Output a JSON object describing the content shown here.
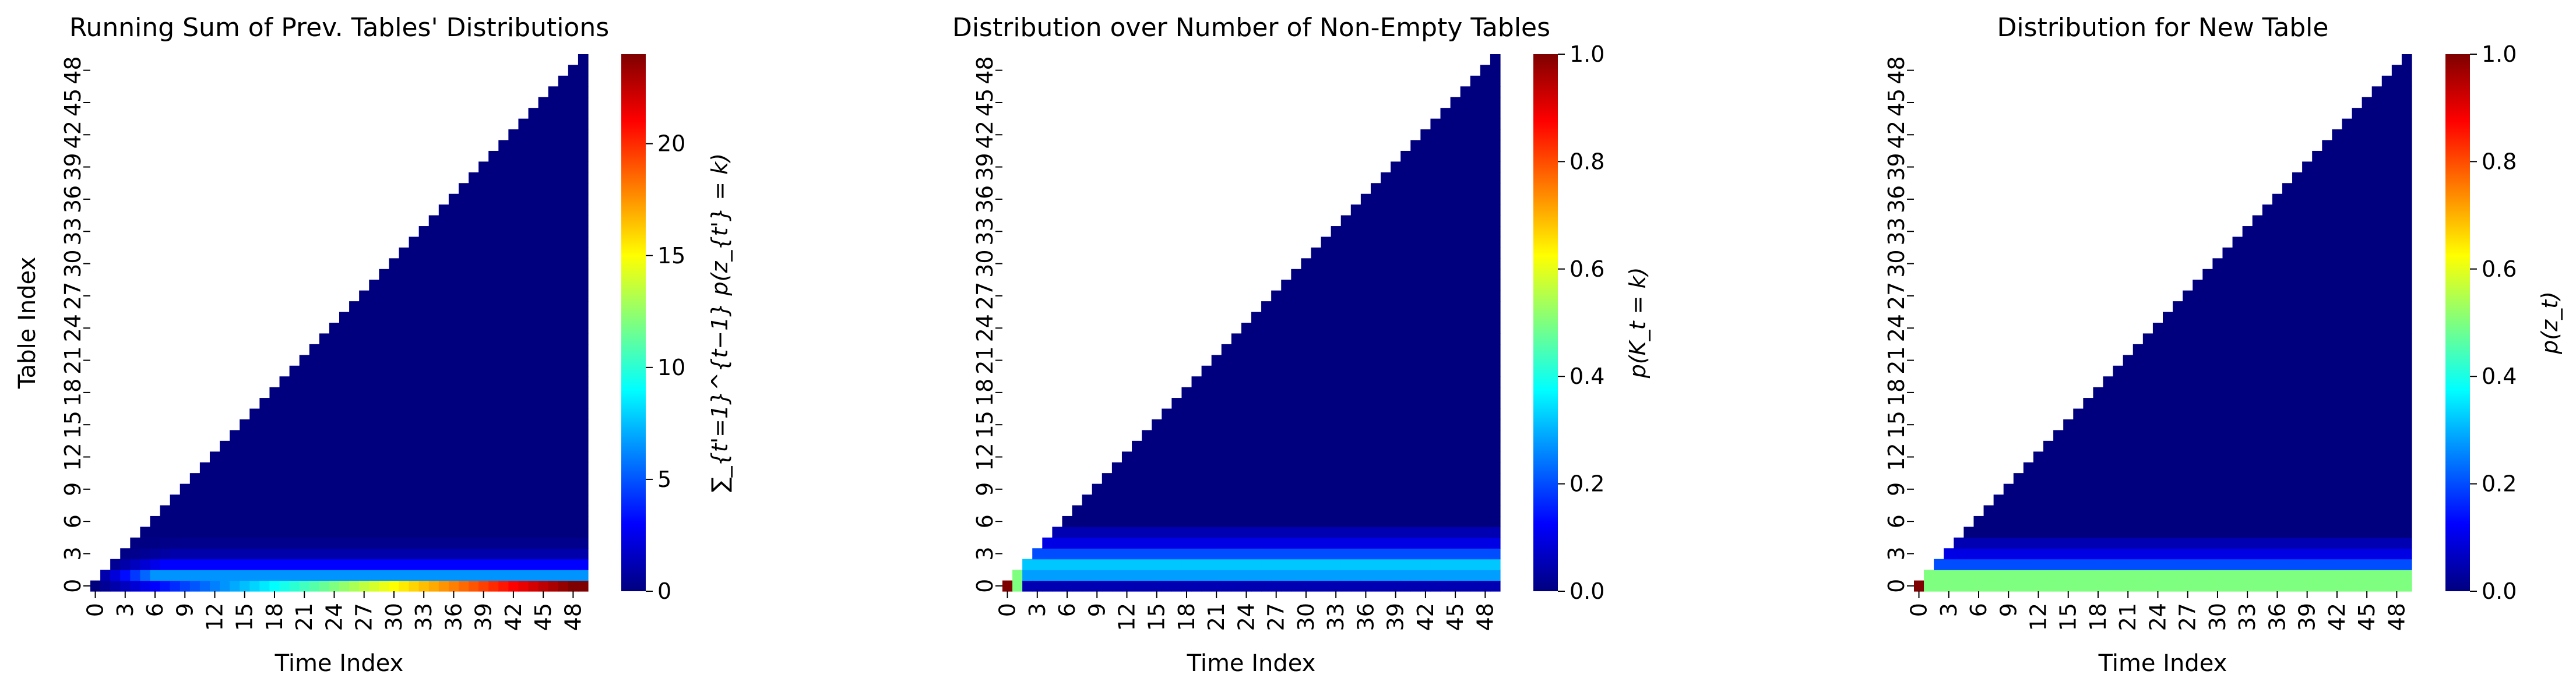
{
  "colormap": {
    "name": "jet",
    "stops": [
      "#00007f",
      "#0000ff",
      "#007fff",
      "#00ffff",
      "#7fff7f",
      "#ffff00",
      "#ff7f00",
      "#ff0000",
      "#7f0000"
    ],
    "empty_cell_color": "#ffffff"
  },
  "chart_data": [
    {
      "type": "heatmap",
      "title": "Running Sum of Prev. Tables' Distributions",
      "xlabel": "Time Index",
      "ylabel": "Table Index",
      "x_tick_labels": [
        "0",
        "3",
        "6",
        "9",
        "12",
        "15",
        "18",
        "21",
        "24",
        "27",
        "30",
        "33",
        "36",
        "39",
        "42",
        "45",
        "48"
      ],
      "y_tick_labels": [
        "0",
        "3",
        "6",
        "9",
        "12",
        "15",
        "18",
        "21",
        "24",
        "27",
        "30",
        "33",
        "36",
        "39",
        "42",
        "45",
        "48"
      ],
      "n_time": 50,
      "n_tables": 50,
      "mask": "cells with table index > time index are empty",
      "colorbar": {
        "label": "∑_{t'=1}^{t−1} p(z_{t'} = k)",
        "min": 0,
        "max": 24,
        "tick_labels": [
          "0",
          "5",
          "10",
          "15",
          "20"
        ],
        "tick_values": [
          0,
          5,
          10,
          15,
          20
        ]
      },
      "approx_values": {
        "table_0_row": "0.5 × time index",
        "table_1_row": "≈6.5 after t≈6",
        "table_2_row": "≈3 after t≈6",
        "table_3_row": "≈1 after t≈6",
        "other_rows": "≈0"
      }
    },
    {
      "type": "heatmap",
      "title": "Distribution over Number of Non-Empty Tables",
      "xlabel": "Time Index",
      "ylabel": "",
      "x_tick_labels": [
        "0",
        "3",
        "6",
        "9",
        "12",
        "15",
        "18",
        "21",
        "24",
        "27",
        "30",
        "33",
        "36",
        "39",
        "42",
        "45",
        "48"
      ],
      "y_tick_labels": [
        "0",
        "3",
        "6",
        "9",
        "12",
        "15",
        "18",
        "21",
        "24",
        "27",
        "30",
        "33",
        "36",
        "39",
        "42",
        "45",
        "48"
      ],
      "n_time": 50,
      "n_tables": 50,
      "mask": "cells with table index > time index are empty",
      "colorbar": {
        "label": "p(K_t = k)",
        "min": 0,
        "max": 1,
        "tick_labels": [
          "0.0",
          "0.2",
          "0.4",
          "0.6",
          "0.8",
          "1.0"
        ],
        "tick_values": [
          0,
          0.2,
          0.4,
          0.6,
          0.8,
          1.0
        ]
      },
      "approx_values": {
        "t0": "1.0 at k=0",
        "t1": "0.5 at k=0 and k=1",
        "t>=2": "k=0 ≈0.05, k=1 ≈0.28, k=2 ≈0.32, k=3 ≈0.2, k=4 ≈0.1, k=5 ≈0.05, higher ≈0"
      }
    },
    {
      "type": "heatmap",
      "title": "Distribution for New Table",
      "xlabel": "Time Index",
      "ylabel": "",
      "x_tick_labels": [
        "0",
        "3",
        "6",
        "9",
        "12",
        "15",
        "18",
        "21",
        "24",
        "27",
        "30",
        "33",
        "36",
        "39",
        "42",
        "45",
        "48"
      ],
      "y_tick_labels": [
        "0",
        "3",
        "6",
        "9",
        "12",
        "15",
        "18",
        "21",
        "24",
        "27",
        "30",
        "33",
        "36",
        "39",
        "42",
        "45",
        "48"
      ],
      "n_time": 50,
      "n_tables": 50,
      "mask": "cells with table index > time index are empty",
      "colorbar": {
        "label": "p(z_t)",
        "min": 0,
        "max": 1,
        "tick_labels": [
          "0.0",
          "0.2",
          "0.4",
          "0.6",
          "0.8",
          "1.0"
        ],
        "tick_values": [
          0,
          0.2,
          0.4,
          0.6,
          0.8,
          1.0
        ]
      },
      "approx_values": {
        "t0": "1.0 at table 0",
        "t1": "0.5 at table 0 and table 1",
        "t>=2": "table 0 ≈0.5, table 1 ≈0.5, table 2 ≈0.2, table 3 ≈0.1, table 4 ≈0.05, higher ≈0"
      }
    }
  ]
}
